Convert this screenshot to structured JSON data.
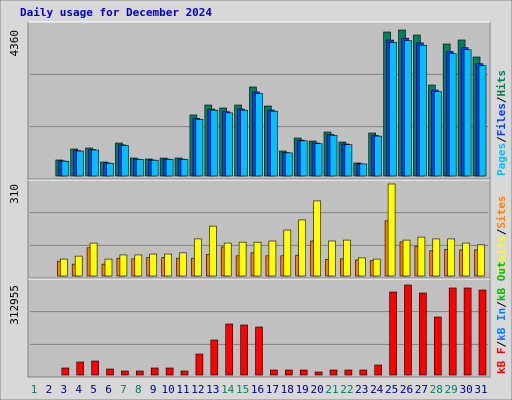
{
  "title": "Daily usage for December 2024",
  "legend_separator": "/",
  "chart_data": [
    {
      "type": "bar",
      "ylim": [
        0,
        4360
      ],
      "yticks": [
        4360
      ],
      "series": [
        {
          "name": "Hits",
          "color": "#00805c",
          "values": [
            0,
            0,
            478,
            806,
            836,
            418,
            985,
            537,
            508,
            537,
            537,
            1822,
            2120,
            2030,
            2120,
            2658,
            2090,
            746,
            1135,
            1045,
            1314,
            1015,
            388,
            1284,
            4300,
            4360,
            4210,
            2717,
            3942,
            4062,
            3554
          ]
        },
        {
          "name": "Files",
          "color": "#0040ff",
          "values": [
            0,
            0,
            450,
            760,
            790,
            390,
            930,
            505,
            480,
            505,
            505,
            1720,
            2000,
            1920,
            2000,
            2510,
            1970,
            700,
            1070,
            985,
            1240,
            955,
            365,
            1210,
            4060,
            4115,
            3975,
            2565,
            3720,
            3835,
            3355
          ]
        },
        {
          "name": "Pages",
          "color": "#00c0ff",
          "values": [
            0,
            0,
            440,
            745,
            775,
            380,
            910,
            495,
            470,
            495,
            495,
            1690,
            1965,
            1885,
            1965,
            2465,
            1935,
            690,
            1050,
            965,
            1215,
            935,
            360,
            1190,
            3990,
            4045,
            3905,
            2520,
            3655,
            3770,
            3295
          ]
        }
      ]
    },
    {
      "type": "bar",
      "ylim": [
        0,
        310
      ],
      "yticks": [
        310
      ],
      "series": [
        {
          "name": "Sites",
          "color": "#ff8000",
          "values": [
            0,
            0,
            50,
            40,
            95,
            40,
            60,
            58,
            62,
            62,
            60,
            60,
            72,
            98,
            68,
            78,
            68,
            68,
            70,
            118,
            56,
            58,
            54,
            52,
            186,
            115,
            100,
            85,
            90,
            88,
            88
          ]
        },
        {
          "name": "Visits",
          "color": "#ffff00",
          "values": [
            0,
            0,
            57,
            67,
            111,
            57,
            71,
            71,
            74,
            74,
            78,
            125,
            168,
            111,
            114,
            114,
            118,
            155,
            189,
            253,
            118,
            121,
            61,
            57,
            310,
            121,
            131,
            125,
            125,
            111,
            105
          ]
        }
      ]
    },
    {
      "type": "bar",
      "ylim": [
        0,
        312955
      ],
      "yticks": [
        312955
      ],
      "categories": [
        "1",
        "2",
        "3",
        "4",
        "5",
        "6",
        "7",
        "8",
        "9",
        "10",
        "11",
        "12",
        "13",
        "14",
        "15",
        "16",
        "17",
        "18",
        "19",
        "20",
        "21",
        "22",
        "23",
        "24",
        "25",
        "26",
        "27",
        "28",
        "29",
        "30",
        "31"
      ],
      "category_colors": [
        "#00805c",
        "#000080",
        "#000080",
        "#000080",
        "#000080",
        "#000080",
        "#00805c",
        "#00805c",
        "#000080",
        "#000080",
        "#000080",
        "#000080",
        "#000080",
        "#00805c",
        "#00805c",
        "#000080",
        "#000080",
        "#000080",
        "#000080",
        "#000080",
        "#00805c",
        "#00805c",
        "#000080",
        "#000080",
        "#000080",
        "#000080",
        "#000080",
        "#00805c",
        "#00805c",
        "#000080",
        "#000080"
      ],
      "series": [
        {
          "name": "kB Out",
          "color": "#00c000",
          "values": [
            null,
            null,
            null,
            null,
            null,
            null,
            null,
            null,
            null,
            null,
            null,
            null,
            null,
            null,
            null,
            null,
            null,
            null,
            null,
            null,
            null,
            null,
            null,
            null,
            null,
            null,
            null,
            null,
            null,
            null,
            null
          ]
        },
        {
          "name": "kB In",
          "color": "#0080ff",
          "values": [
            null,
            null,
            null,
            null,
            null,
            null,
            null,
            null,
            null,
            null,
            null,
            null,
            null,
            null,
            null,
            null,
            null,
            null,
            null,
            null,
            null,
            null,
            null,
            null,
            null,
            null,
            null,
            null,
            null,
            null,
            null
          ]
        },
        {
          "name": "kB F",
          "color": "#ff0000",
          "values": [
            0,
            0,
            24342,
            45204,
            48681,
            20864,
            13909,
            13909,
            24342,
            24342,
            13909,
            73022,
            121704,
            177336,
            173859,
            166904,
            17386,
            17386,
            17386,
            10432,
            17386,
            17386,
            17386,
            34773,
            288612,
            312955,
            285093,
            201677,
            302523,
            302523,
            295568
          ]
        }
      ]
    }
  ]
}
